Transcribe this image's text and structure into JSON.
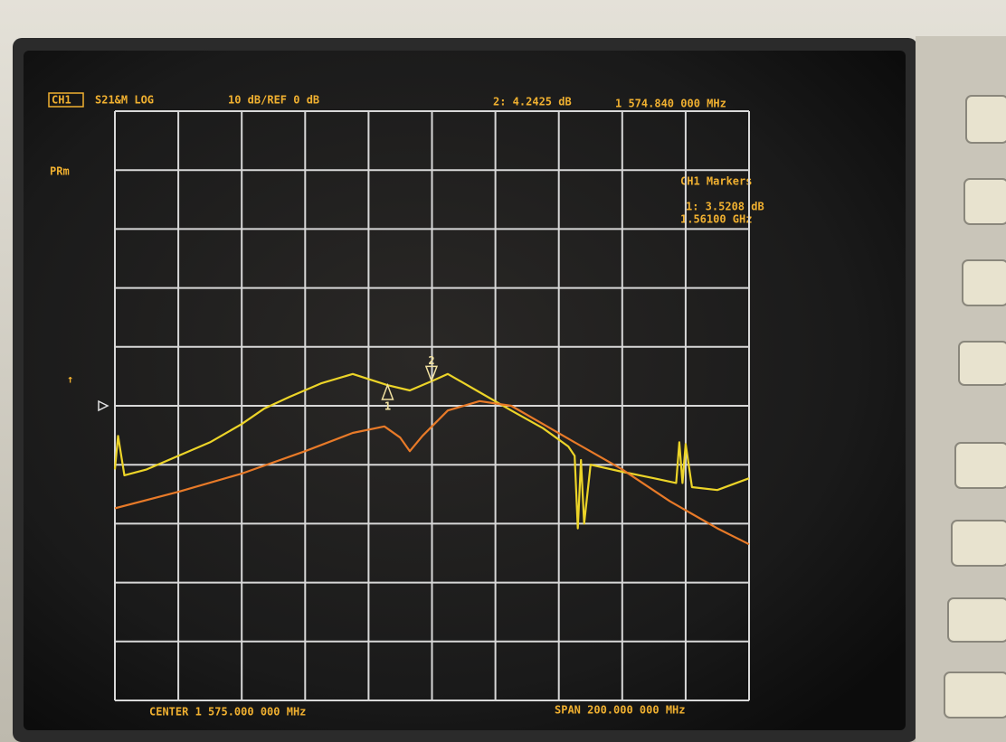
{
  "chart_data": {
    "type": "line",
    "channel": "CH1",
    "measurement": "S21&M LOG",
    "scale": "10 dB/REF 0 dB",
    "active_marker": "2: 4.2425 dB",
    "active_marker_freq": "1 574.840 000 MHz",
    "mode": "PRm",
    "marker_table_title": "CH1 Markers",
    "marker_table": [
      "1: 3.5208 dB",
      "1.56100 GHz"
    ],
    "center": "CENTER 1 575.000 000 MHz",
    "span": "SPAN 200.000 000 MHz",
    "xlim": [
      1475,
      1675
    ],
    "ylim": [
      -50,
      50
    ],
    "xticks": [
      1475,
      1495,
      1515,
      1535,
      1555,
      1575,
      1595,
      1615,
      1635,
      1655,
      1675
    ],
    "yticks": [
      -50,
      -40,
      -30,
      -20,
      -10,
      0,
      10,
      20,
      30,
      40,
      50
    ],
    "reference": 0,
    "grid": true,
    "series": [
      {
        "color": "#ecd428",
        "x": [
          1475,
          1476,
          1478,
          1485,
          1495,
          1505,
          1515,
          1522,
          1530,
          1540,
          1550,
          1561,
          1568,
          1575,
          1580,
          1590,
          1600,
          1610,
          1618,
          1620,
          1621,
          1622,
          1623,
          1625,
          1635,
          1645,
          1652,
          1653,
          1654,
          1655,
          1657,
          1665,
          1675
        ],
        "values": [
          -10.8,
          -5.1,
          -11.8,
          -10.8,
          -8.5,
          -6.2,
          -3.1,
          -0.5,
          1.5,
          3.8,
          5.4,
          3.5,
          2.6,
          4.2,
          5.4,
          2.3,
          -0.8,
          -3.8,
          -6.9,
          -8.5,
          -20.8,
          -9.2,
          -20,
          -10,
          -11.2,
          -12.3,
          -13.1,
          -6.2,
          -13.1,
          -6.5,
          -13.8,
          -14.3,
          -12.3
        ]
      },
      {
        "color": "#e87a28",
        "x": [
          1475,
          1495,
          1515,
          1535,
          1550,
          1560,
          1565,
          1568,
          1572,
          1580,
          1590,
          1600,
          1610,
          1620,
          1635,
          1650,
          1665,
          1675
        ],
        "values": [
          -17.4,
          -14.6,
          -11.5,
          -7.7,
          -4.6,
          -3.5,
          -5.4,
          -7.7,
          -5.1,
          -0.8,
          0.8,
          0,
          -3.1,
          -6.2,
          -10.8,
          -16.2,
          -20.8,
          -23.5
        ]
      }
    ],
    "markers": [
      {
        "label": "1",
        "x": 1561,
        "value": 3.5208
      },
      {
        "label": "2",
        "x": 1574.84,
        "value": 4.2425
      }
    ]
  }
}
